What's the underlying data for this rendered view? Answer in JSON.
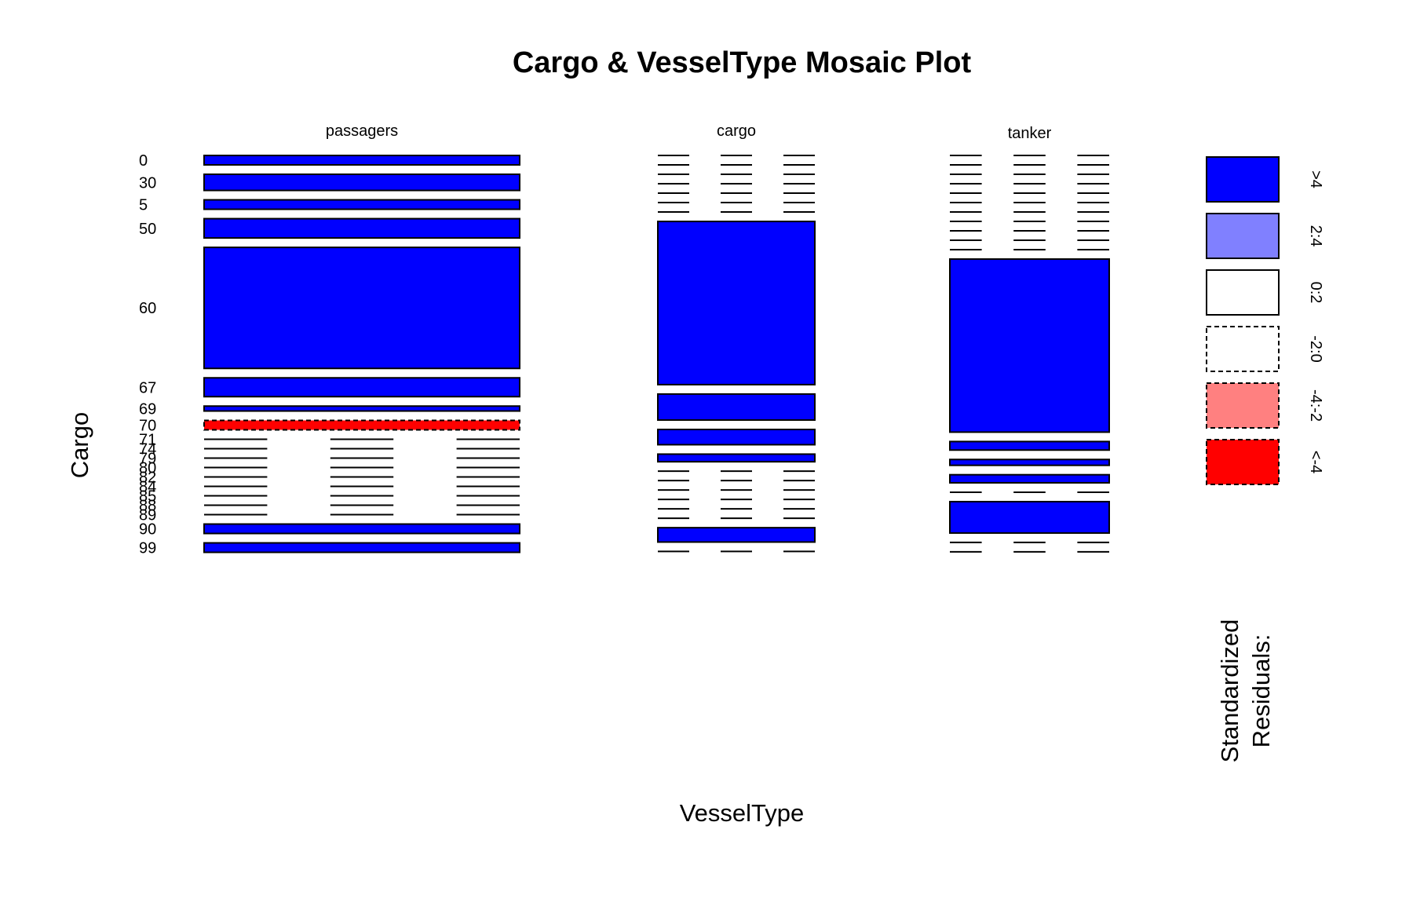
{
  "chart_data": {
    "type": "mosaic",
    "title": "Cargo & VesselType Mosaic Plot",
    "xlabel": "VesselType",
    "ylabel": "Cargo",
    "vessel_types": [
      "passagers",
      "cargo",
      "tanker"
    ],
    "cargo_levels": [
      "0",
      "30",
      "5",
      "50",
      "60",
      "67",
      "69",
      "70",
      "71",
      "74",
      "79",
      "80",
      "82",
      "84",
      "85",
      "88",
      "89",
      "90",
      "99"
    ],
    "column_widths": [
      0.2,
      0.103,
      0.1
    ],
    "cells": {
      "passagers": [
        {
          "cargo": "0",
          "share": 0.021,
          "residual": "pos_high"
        },
        {
          "cargo": "30",
          "share": 0.036,
          "residual": "pos_high"
        },
        {
          "cargo": "5",
          "share": 0.021,
          "residual": "pos_high"
        },
        {
          "cargo": "50",
          "share": 0.043,
          "residual": "pos_high"
        },
        {
          "cargo": "60",
          "share": 0.27,
          "residual": "pos_high"
        },
        {
          "cargo": "67",
          "share": 0.042,
          "residual": "pos_high"
        },
        {
          "cargo": "69",
          "share": 0.011,
          "residual": "pos_high"
        },
        {
          "cargo": "70",
          "share": 0.021,
          "residual": "neg_high"
        },
        {
          "cargo": "71",
          "share": 0,
          "residual": "pos_high"
        },
        {
          "cargo": "74",
          "share": 0,
          "residual": "pos_high"
        },
        {
          "cargo": "79",
          "share": 0,
          "residual": "pos_high"
        },
        {
          "cargo": "80",
          "share": 0,
          "residual": "pos_high"
        },
        {
          "cargo": "82",
          "share": 0,
          "residual": "pos_high"
        },
        {
          "cargo": "84",
          "share": 0,
          "residual": "pos_high"
        },
        {
          "cargo": "85",
          "share": 0,
          "residual": "pos_high"
        },
        {
          "cargo": "88",
          "share": 0,
          "residual": "pos_high"
        },
        {
          "cargo": "89",
          "share": 0,
          "residual": "pos_high"
        },
        {
          "cargo": "90",
          "share": 0.021,
          "residual": "pos_high"
        },
        {
          "cargo": "99",
          "share": 0.021,
          "residual": "pos_high"
        }
      ],
      "cargo": [
        {
          "cargo": "0",
          "share": 0,
          "residual": "pos_high"
        },
        {
          "cargo": "30",
          "share": 0,
          "residual": "pos_high"
        },
        {
          "cargo": "5",
          "share": 0,
          "residual": "pos_high"
        },
        {
          "cargo": "50",
          "share": 0,
          "residual": "pos_high"
        },
        {
          "cargo": "60",
          "share": 0.0001,
          "residual": "pos_high"
        },
        {
          "cargo": "67",
          "share": 0,
          "residual": "pos_high"
        },
        {
          "cargo": "69",
          "share": 0,
          "residual": "pos_high"
        },
        {
          "cargo": "70",
          "share": 0.364,
          "residual": "pos_high"
        },
        {
          "cargo": "71",
          "share": 0.058,
          "residual": "pos_high"
        },
        {
          "cargo": "74",
          "share": 0.034,
          "residual": "pos_high"
        },
        {
          "cargo": "79",
          "share": 0.017,
          "residual": "pos_high"
        },
        {
          "cargo": "80",
          "share": 0,
          "residual": "pos_high"
        },
        {
          "cargo": "82",
          "share": 0,
          "residual": "pos_high"
        },
        {
          "cargo": "84",
          "share": 0,
          "residual": "pos_high"
        },
        {
          "cargo": "85",
          "share": 0,
          "residual": "pos_high"
        },
        {
          "cargo": "88",
          "share": 0,
          "residual": "pos_high"
        },
        {
          "cargo": "89",
          "share": 0,
          "residual": "pos_high"
        },
        {
          "cargo": "90",
          "share": 0.032,
          "residual": "pos_high"
        },
        {
          "cargo": "99",
          "share": 0,
          "residual": "pos_high"
        }
      ],
      "tanker": [
        {
          "cargo": "0",
          "share": 0,
          "residual": "pos_high"
        },
        {
          "cargo": "30",
          "share": 0,
          "residual": "pos_high"
        },
        {
          "cargo": "5",
          "share": 0,
          "residual": "pos_high"
        },
        {
          "cargo": "50",
          "share": 0,
          "residual": "pos_high"
        },
        {
          "cargo": "60",
          "share": 0,
          "residual": "pos_high"
        },
        {
          "cargo": "67",
          "share": 0,
          "residual": "pos_high"
        },
        {
          "cargo": "69",
          "share": 0,
          "residual": "pos_high"
        },
        {
          "cargo": "70",
          "share": 0,
          "residual": "pos_high"
        },
        {
          "cargo": "71",
          "share": 0,
          "residual": "pos_high"
        },
        {
          "cargo": "74",
          "share": 0,
          "residual": "pos_high"
        },
        {
          "cargo": "79",
          "share": 0,
          "residual": "pos_high"
        },
        {
          "cargo": "80",
          "share": 0.386,
          "residual": "pos_high"
        },
        {
          "cargo": "82",
          "share": 0.019,
          "residual": "pos_high"
        },
        {
          "cargo": "84",
          "share": 0.013,
          "residual": "pos_high"
        },
        {
          "cargo": "85",
          "share": 0.018,
          "residual": "pos_high"
        },
        {
          "cargo": "88",
          "share": 0,
          "residual": "pos_high"
        },
        {
          "cargo": "89",
          "share": 0.07,
          "residual": "pos_high"
        },
        {
          "cargo": "90",
          "share": 0,
          "residual": "pos_high"
        },
        {
          "cargo": "99",
          "share": 0,
          "residual": "pos_high"
        }
      ]
    },
    "legend": {
      "title_lines": [
        "Standardized",
        "Residuals:"
      ],
      "placement": "right",
      "entries": [
        {
          "key": "pos_high",
          "label": ">4",
          "fill": "#0000ff",
          "dashed": false
        },
        {
          "key": "pos_mid",
          "label": "2:4",
          "fill": "#8080ff",
          "dashed": false
        },
        {
          "key": "pos_low",
          "label": "0:2",
          "fill": "#ffffff",
          "dashed": false
        },
        {
          "key": "neg_low",
          "label": "-2:0",
          "fill": "#ffffff",
          "dashed": true
        },
        {
          "key": "neg_mid",
          "label": "-4:-2",
          "fill": "#ff8080",
          "dashed": true
        },
        {
          "key": "neg_high",
          "label": "<-4",
          "fill": "#ff0000",
          "dashed": true
        }
      ]
    }
  }
}
